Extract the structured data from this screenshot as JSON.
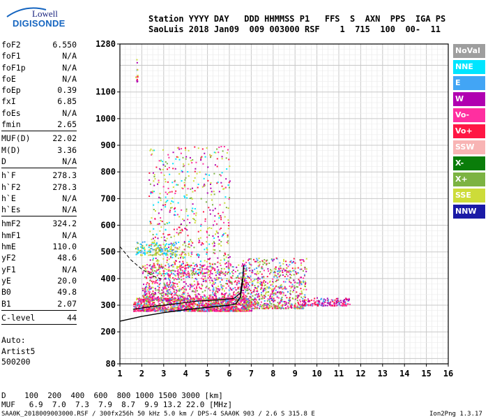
{
  "logo": {
    "top": "Lowell",
    "bottom": "DIGISONDE"
  },
  "header": {
    "columns": "Station YYYY DAY   DDD HHMMSS P1   FFS  S  AXN  PPS  IGA PS",
    "values": "SaoLuis 2018 Jan09  009 003000 RSF    1  715  100  00-  11"
  },
  "params": [
    {
      "label": "foF2",
      "value": "6.550"
    },
    {
      "label": "foF1",
      "value": "N/A"
    },
    {
      "label": "foF1p",
      "value": "N/A"
    },
    {
      "label": "foE",
      "value": "N/A"
    },
    {
      "label": "foEp",
      "value": "0.39"
    },
    {
      "label": "fxI",
      "value": "6.85"
    },
    {
      "label": "foEs",
      "value": "N/A"
    },
    {
      "label": "fmin",
      "value": "2.65"
    },
    {
      "sep": true
    },
    {
      "label": "MUF(D)",
      "value": "22.02"
    },
    {
      "label": "M(D)",
      "value": "3.36"
    },
    {
      "label": "D",
      "value": "N/A"
    },
    {
      "sep": true
    },
    {
      "label": "h`F",
      "value": "278.3"
    },
    {
      "label": "h`F2",
      "value": "278.3"
    },
    {
      "label": "h`E",
      "value": "N/A"
    },
    {
      "label": "h`Es",
      "value": "N/A"
    },
    {
      "sep": true
    },
    {
      "label": "hmF2",
      "value": "324.2"
    },
    {
      "label": "hmF1",
      "value": "N/A"
    },
    {
      "label": "hmE",
      "value": "110.0"
    },
    {
      "label": "yF2",
      "value": "48.6"
    },
    {
      "label": "yF1",
      "value": "N/A"
    },
    {
      "label": "yE",
      "value": "20.0"
    },
    {
      "label": "B0",
      "value": "49.8"
    },
    {
      "label": "B1",
      "value": "2.07"
    },
    {
      "sep": true
    },
    {
      "label": "C-level",
      "value": "44"
    },
    {
      "sep": true
    }
  ],
  "auto": {
    "line1": "Auto:",
    "line2": "Artist5",
    "line3": "500200"
  },
  "legend": [
    {
      "label": "NoVal",
      "color": "#9e9e9e"
    },
    {
      "label": "NNE",
      "color": "#00e5ff"
    },
    {
      "label": "E",
      "color": "#42a5f5"
    },
    {
      "label": "W",
      "color": "#b000b0"
    },
    {
      "label": "Vo-",
      "color": "#ff2fa0"
    },
    {
      "label": "Vo+",
      "color": "#ff1744"
    },
    {
      "label": "SSW",
      "color": "#f8b4b4"
    },
    {
      "label": "X-",
      "color": "#0a7d0a"
    },
    {
      "label": "X+",
      "color": "#7cb342"
    },
    {
      "label": "SSE",
      "color": "#cddc39"
    },
    {
      "label": "NNW",
      "color": "#1a1aa6"
    }
  ],
  "footer": {
    "d_row": "D    100  200  400  600  800 1000 1500 3000 [km]",
    "muf_row": "MUF   6.9  7.0  7.3  7.9  8.7  9.9 13.2 22.0 [MHz]",
    "file_row": "SAA0K_2018009003000.RSF / 300fx256h 50 kHz 5.0 km / DPS-4 SAA0K 903 / 2.6 S 315.8 E",
    "version": "Ion2Png 1.3.17"
  },
  "chart_data": {
    "type": "scatter",
    "xlim": [
      1,
      16
    ],
    "ylim": [
      80,
      1280
    ],
    "xticks": [
      "1",
      "2",
      "3",
      "4",
      "5",
      "6",
      "7",
      "8",
      "9",
      "10",
      "11",
      "12",
      "13",
      "14",
      "15",
      "16"
    ],
    "yticks": [
      {
        "v": 80,
        "label": "80"
      },
      {
        "v": 200,
        "label": "200"
      },
      {
        "v": 300,
        "label": "300"
      },
      {
        "v": 400,
        "label": "400"
      },
      {
        "v": 500,
        "label": "500"
      },
      {
        "v": 600,
        "label": "600"
      },
      {
        "v": 700,
        "label": "700"
      },
      {
        "v": 800,
        "label": "800"
      },
      {
        "v": 900,
        "label": "900"
      },
      {
        "v": 1000,
        "label": "1000"
      },
      {
        "v": 1100,
        "label": "1100"
      },
      {
        "v": 1280,
        "label": "1280"
      }
    ],
    "grid": true,
    "echo_clusters": [
      {
        "x0": 1.6,
        "x1": 7.0,
        "y0": 280,
        "y1": 330,
        "n": 1400,
        "colors": [
          3,
          4,
          5,
          4,
          5,
          8,
          9,
          2
        ]
      },
      {
        "x0": 2.0,
        "x1": 6.8,
        "y0": 320,
        "y1": 460,
        "n": 900,
        "colors": [
          5,
          4,
          3,
          9,
          8,
          4,
          2
        ]
      },
      {
        "x0": 2.3,
        "x1": 6.0,
        "y0": 420,
        "y1": 900,
        "n": 650,
        "colors": [
          9,
          9,
          8,
          5,
          4,
          3,
          1
        ]
      },
      {
        "x0": 6.6,
        "x1": 9.5,
        "y0": 290,
        "y1": 480,
        "n": 700,
        "colors": [
          3,
          4,
          5,
          2,
          9,
          8
        ]
      },
      {
        "x0": 9.3,
        "x1": 11.5,
        "y0": 300,
        "y1": 330,
        "n": 160,
        "colors": [
          3,
          4,
          5,
          2
        ]
      },
      {
        "x0": 1.7,
        "x1": 3.6,
        "y0": 490,
        "y1": 540,
        "n": 160,
        "colors": [
          9,
          2,
          1,
          8
        ]
      },
      {
        "x0": 1.7,
        "x1": 1.8,
        "y0": 1140,
        "y1": 1230,
        "n": 14,
        "colors": [
          3,
          9,
          5,
          2
        ]
      }
    ],
    "trace_points": [
      [
        1,
        240
      ],
      [
        2,
        258
      ],
      [
        3,
        272
      ],
      [
        4,
        283
      ],
      [
        5,
        292
      ],
      [
        6,
        300
      ],
      [
        6.3,
        305
      ],
      [
        6.5,
        330
      ],
      [
        6.6,
        380
      ],
      [
        6.65,
        450
      ]
    ],
    "virtual_height_trace": [
      [
        1.6,
        285
      ],
      [
        2.5,
        295
      ],
      [
        3.5,
        305
      ],
      [
        4.5,
        315
      ],
      [
        5.5,
        320
      ],
      [
        6.2,
        325
      ],
      [
        6.5,
        345
      ],
      [
        6.6,
        400
      ]
    ],
    "dashed_trace": [
      [
        1,
        520
      ],
      [
        1.5,
        470
      ],
      [
        2,
        435
      ],
      [
        2.5,
        410
      ],
      [
        3,
        395
      ]
    ]
  }
}
